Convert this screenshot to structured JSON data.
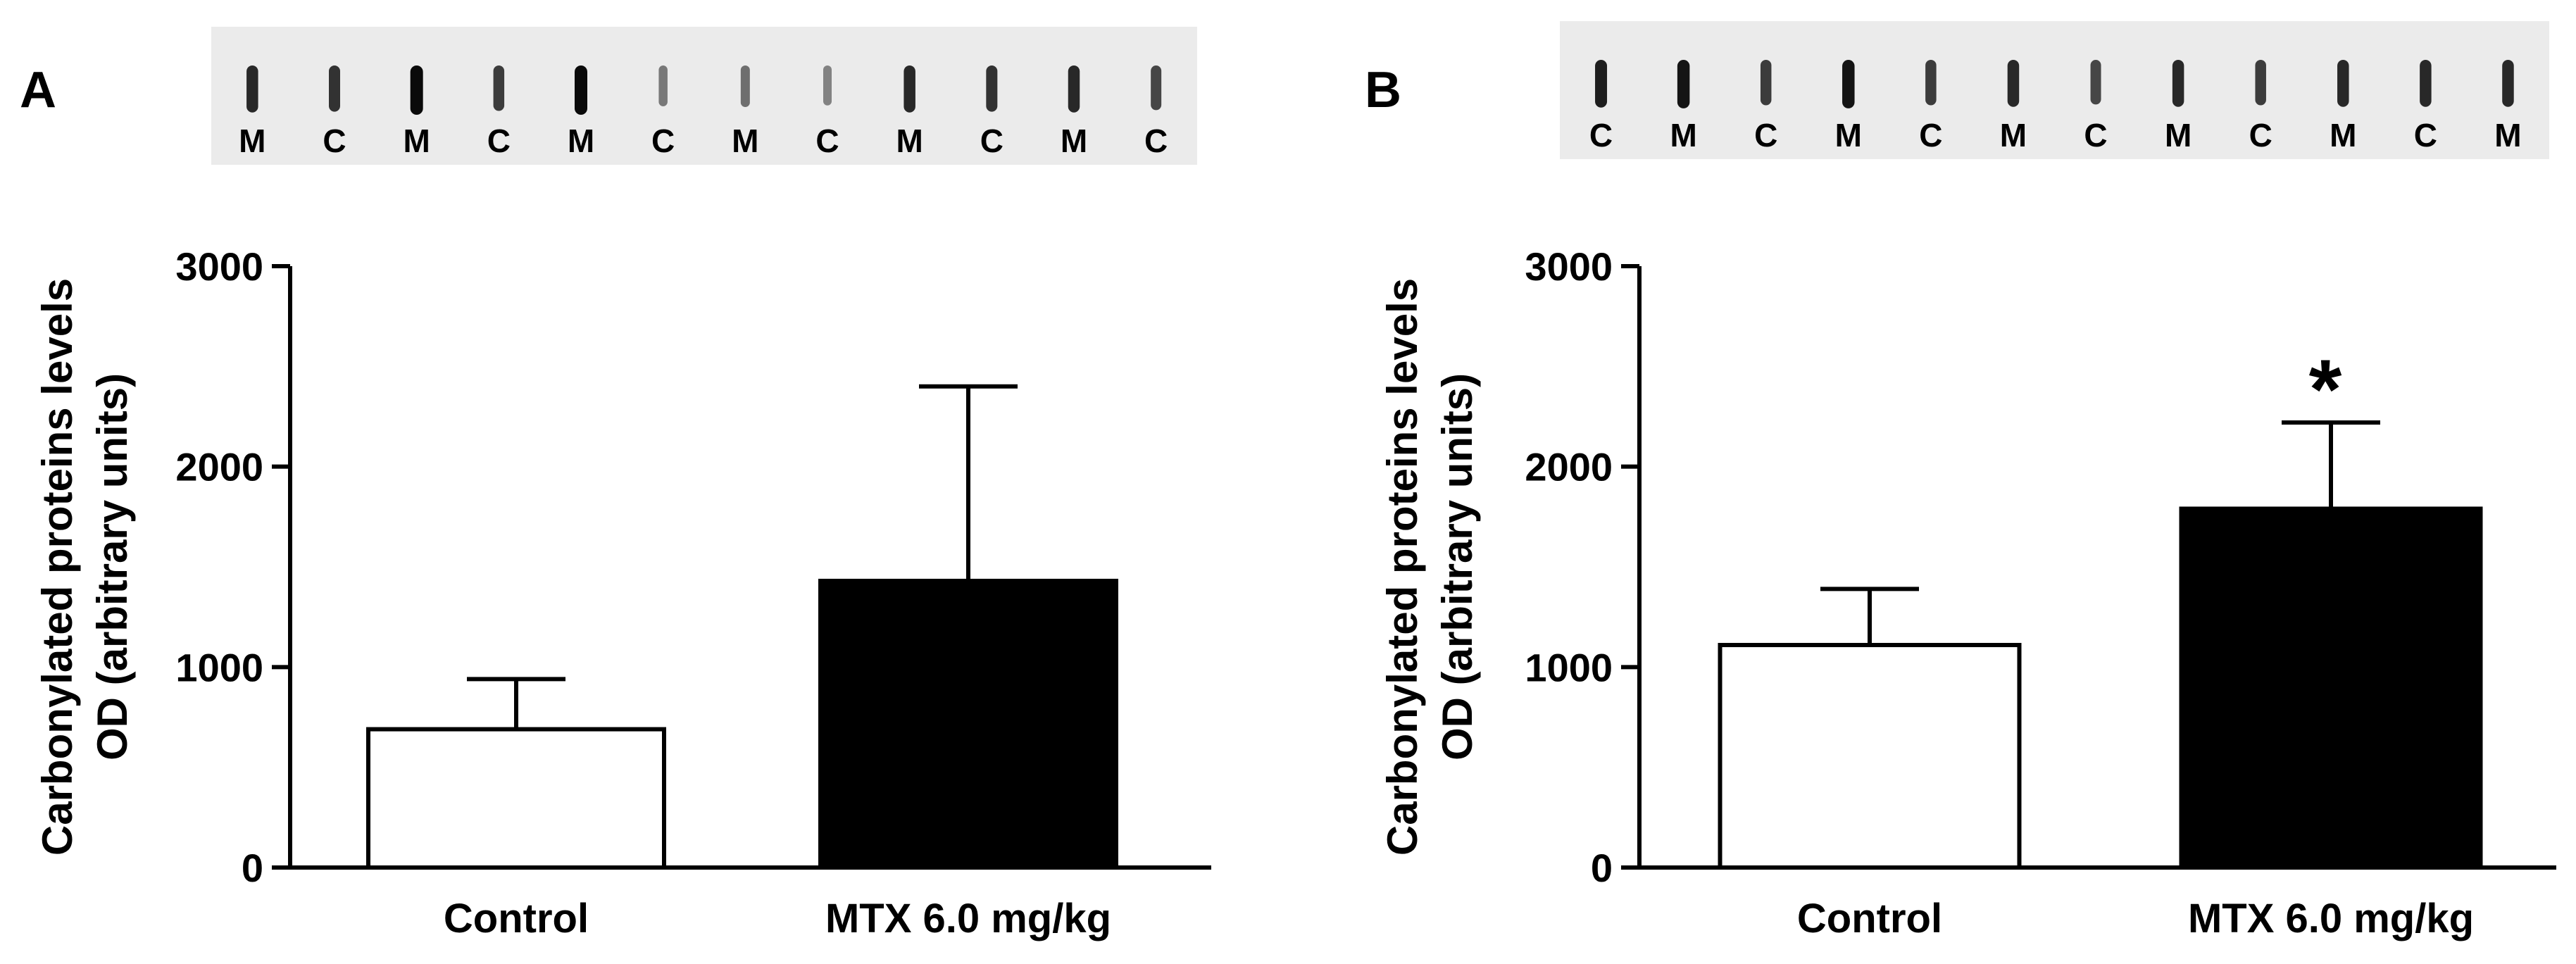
{
  "chart_data": [
    {
      "panel": "A",
      "type": "bar",
      "categories": [
        "Control",
        "MTX 6.0 mg/kg"
      ],
      "values": [
        690,
        1430
      ],
      "error_upper": [
        940,
        2400
      ],
      "bar_colors": [
        "#ffffff",
        "#000000"
      ],
      "ylabel_line1": "Carbonylated proteins levels",
      "ylabel_line2": "OD (arbitrary units)",
      "ylim": [
        0,
        3000
      ],
      "yticks": [
        "0",
        "1000",
        "2000",
        "3000"
      ],
      "annotations": [],
      "blot_labels": [
        "M",
        "C",
        "M",
        "C",
        "M",
        "C",
        "M",
        "C",
        "M",
        "C",
        "M",
        "C"
      ],
      "blot_intensity": [
        0.85,
        0.8,
        1.0,
        0.75,
        1.0,
        0.45,
        0.5,
        0.4,
        0.85,
        0.8,
        0.85,
        0.7
      ]
    },
    {
      "panel": "B",
      "type": "bar",
      "categories": [
        "Control",
        "MTX 6.0 mg/kg"
      ],
      "values": [
        1110,
        1790
      ],
      "error_upper": [
        1390,
        2220
      ],
      "bar_colors": [
        "#ffffff",
        "#000000"
      ],
      "ylabel_line1": "Carbonylated proteins levels",
      "ylabel_line2": "OD (arbitrary units)",
      "ylim": [
        0,
        3000
      ],
      "yticks": [
        "0",
        "1000",
        "2000",
        "3000"
      ],
      "annotations": [
        "",
        "*"
      ],
      "blot_labels": [
        "C",
        "M",
        "C",
        "M",
        "C",
        "M",
        "C",
        "M",
        "C",
        "M",
        "C",
        "M"
      ],
      "blot_intensity": [
        0.9,
        0.95,
        0.75,
        0.95,
        0.75,
        0.85,
        0.7,
        0.85,
        0.75,
        0.85,
        0.85,
        0.85
      ]
    }
  ]
}
